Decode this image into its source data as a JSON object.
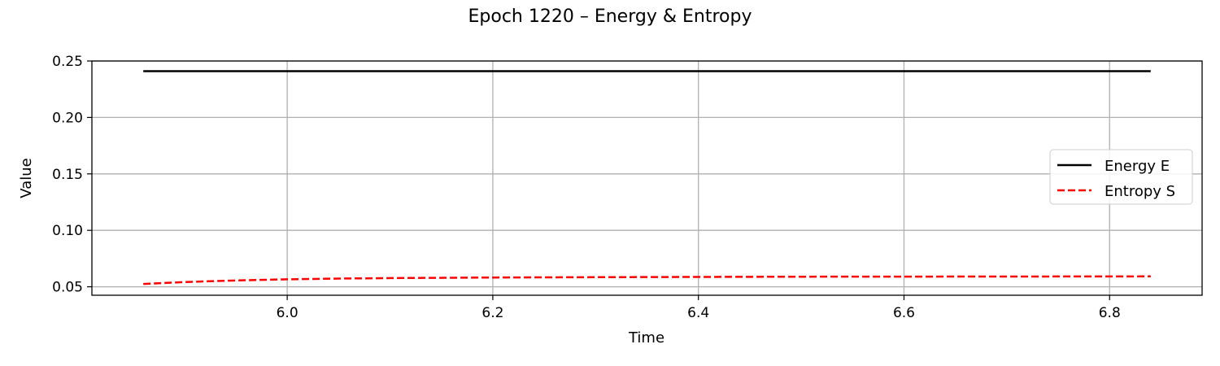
{
  "chart_data": {
    "type": "line",
    "title": "Epoch 1220 – Energy & Entropy",
    "xlabel": "Time",
    "ylabel": "Value",
    "xlim": [
      5.81,
      6.89
    ],
    "ylim": [
      0.0425,
      0.25
    ],
    "xticks": [
      6.0,
      6.2,
      6.4,
      6.6,
      6.8
    ],
    "xtick_labels": [
      "6.0",
      "6.2",
      "6.4",
      "6.6",
      "6.8"
    ],
    "yticks": [
      0.05,
      0.1,
      0.15,
      0.2,
      0.25
    ],
    "ytick_labels": [
      "0.05",
      "0.10",
      "0.15",
      "0.20",
      "0.25"
    ],
    "grid": true,
    "legend_position": "center-right",
    "series": [
      {
        "name": "Energy E",
        "color": "#000000",
        "style": "solid",
        "x": [
          5.86,
          6.0,
          6.2,
          6.4,
          6.6,
          6.84
        ],
        "y": [
          0.241,
          0.241,
          0.241,
          0.241,
          0.241,
          0.241
        ]
      },
      {
        "name": "Entropy S",
        "color": "#ff0000",
        "style": "dashed",
        "x": [
          5.86,
          5.9,
          5.95,
          6.0,
          6.05,
          6.1,
          6.2,
          6.3,
          6.4,
          6.5,
          6.6,
          6.7,
          6.84
        ],
        "y": [
          0.0525,
          0.0542,
          0.0556,
          0.0566,
          0.0573,
          0.0577,
          0.0582,
          0.0585,
          0.0587,
          0.0589,
          0.059,
          0.0591,
          0.0592
        ]
      }
    ]
  }
}
